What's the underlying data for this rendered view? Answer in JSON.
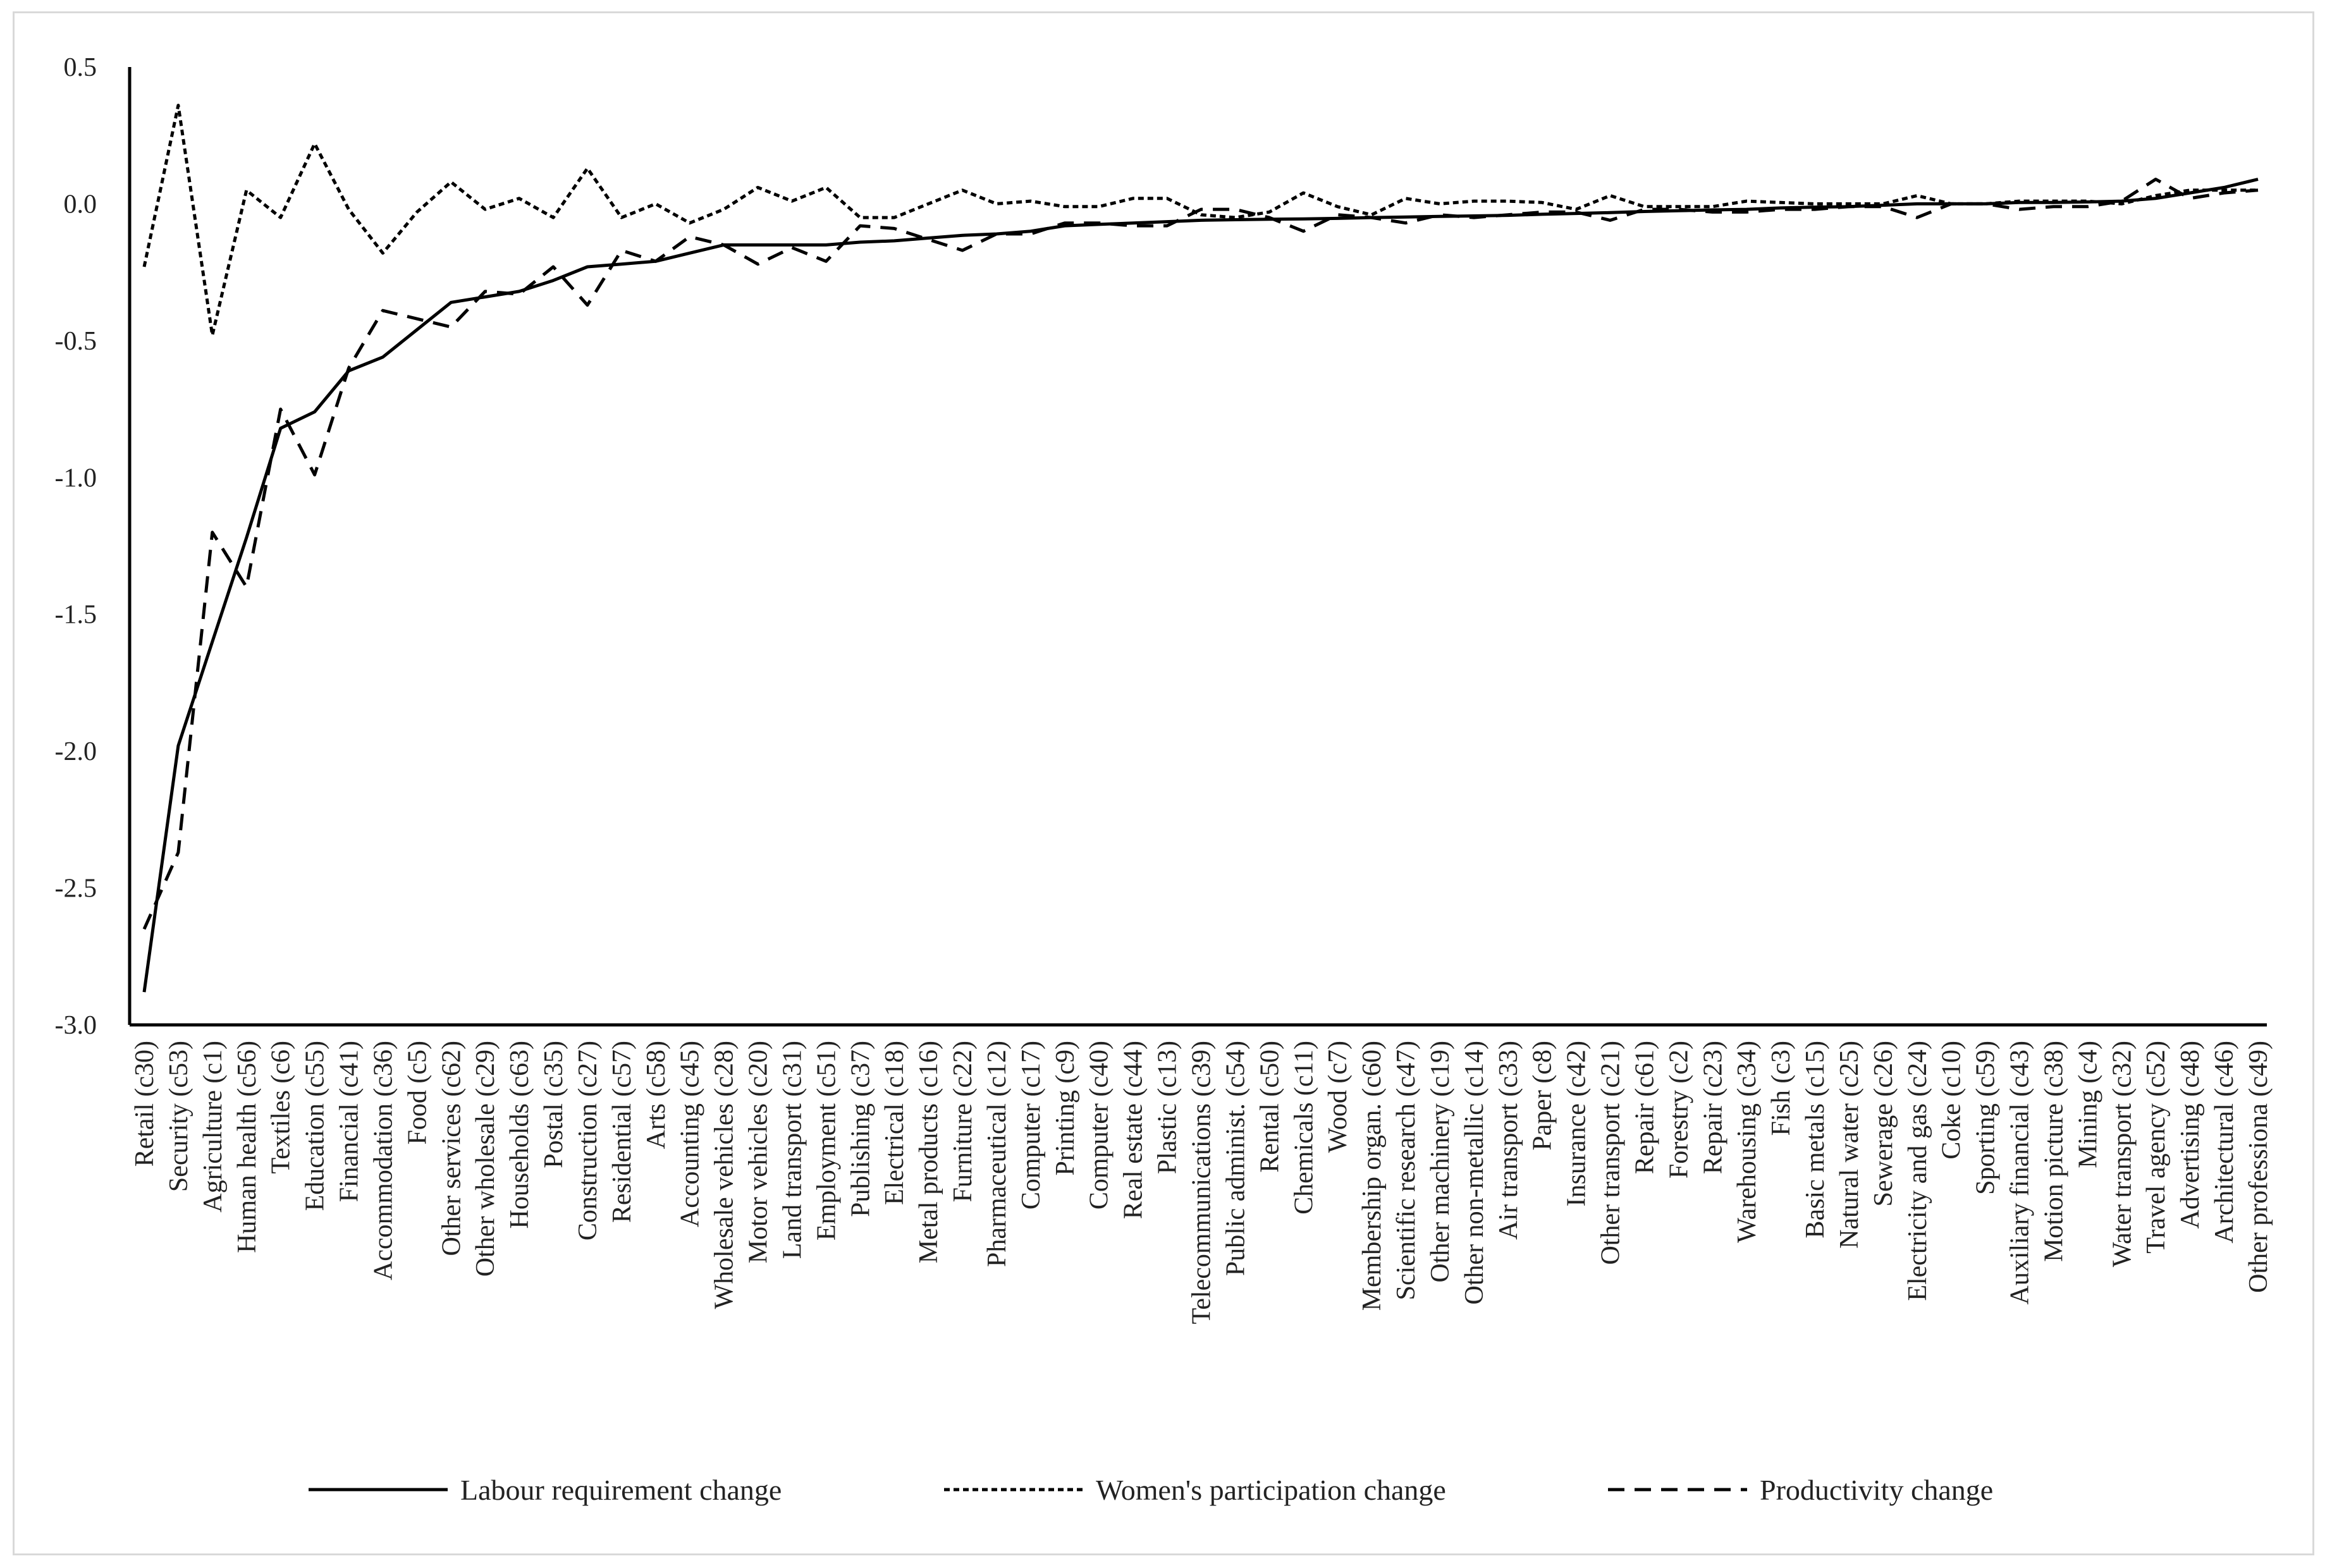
{
  "chart_data": {
    "type": "line",
    "title": "",
    "xlabel": "",
    "ylabel": "",
    "ylim": [
      -3.0,
      0.5
    ],
    "yticks": [
      "0.5",
      "0.0",
      "-0.5",
      "-1.0",
      "-1.5",
      "-2.0",
      "-2.5",
      "-3.0"
    ],
    "ytick_values": [
      0.5,
      0.0,
      -0.5,
      -1.0,
      -1.5,
      -2.0,
      -2.5,
      -3.0
    ],
    "grid": false,
    "legend_position": "bottom",
    "categories": [
      "Retail (c30)",
      "Security (c53)",
      "Agriculture (c1)",
      "Human health (c56)",
      "Textiles (c6)",
      "Education (c55)",
      "Financial  (c41)",
      "Accommodation (c36)",
      "Food (c5)",
      "Other services (c62)",
      "Other wholesale (c29)",
      "Households (c63)",
      "Postal (c35)",
      "Construction (c27)",
      "Residential (c57)",
      "Arts (c58)",
      "Accounting (c45)",
      "Wholesale vehicles (c28)",
      "Motor vehicles (c20)",
      "Land transport (c31)",
      "Employment (c51)",
      "Publishing (c37)",
      "Electrical (c18)",
      "Metal products (c16)",
      "Furniture (c22)",
      "Pharmaceutical (c12)",
      "Computer (c17)",
      "Printing (c9)",
      "Computer (c40)",
      "Real estate (c44)",
      "Plastic (c13)",
      "Telecommunications (c39)",
      "Public administ. (c54)",
      "Rental (c50)",
      "Chemicals (c11)",
      "Wood (c7)",
      "Membership organ. (c60)",
      "Scientific research (c47)",
      "Other machinery (c19)",
      "Other non-metallic (c14)",
      "Air transport (c33)",
      "Paper (c8)",
      "Insurance (c42)",
      "Other transport (c21)",
      "Repair (c61)",
      "Forestry (c2)",
      "Repair (c23)",
      "Warehousing (c34)",
      "Fish (c3)",
      "Basic metals (c15)",
      "Natural water (c25)",
      "Sewerage (c26)",
      "Electricity and gas (c24)",
      "Coke (c10)",
      "Sporting (c59)",
      "Auxiliary financial (c43)",
      "Motion picture (c38)",
      "Mining (c4)",
      "Water transport (c32)",
      "Travel agency (c52)",
      "Advertising (c48)",
      "Architectural (c46)",
      "Other professiona (c49)"
    ],
    "series": [
      {
        "name": "Labour requirement change",
        "style": "solid",
        "color": "#000000",
        "values": [
          -2.88,
          -1.98,
          -1.6,
          -1.22,
          -0.82,
          -0.76,
          -0.61,
          -0.56,
          -0.46,
          -0.36,
          -0.34,
          -0.32,
          -0.28,
          -0.23,
          -0.22,
          -0.21,
          -0.18,
          -0.15,
          -0.15,
          -0.15,
          -0.15,
          -0.14,
          -0.135,
          -0.125,
          -0.115,
          -0.11,
          -0.1,
          -0.08,
          -0.075,
          -0.07,
          -0.065,
          -0.06,
          -0.058,
          -0.056,
          -0.055,
          -0.053,
          -0.05,
          -0.048,
          -0.046,
          -0.044,
          -0.042,
          -0.038,
          -0.035,
          -0.032,
          -0.028,
          -0.025,
          -0.022,
          -0.02,
          -0.015,
          -0.012,
          -0.01,
          -0.005,
          0.0,
          0.0,
          0.0,
          0.005,
          0.005,
          0.007,
          0.01,
          0.02,
          0.04,
          0.06,
          0.09
        ]
      },
      {
        "name": "Women's participation change",
        "style": "dotted",
        "color": "#000000",
        "values": [
          -0.23,
          0.36,
          -0.48,
          0.05,
          -0.05,
          0.22,
          -0.02,
          -0.18,
          -0.03,
          0.08,
          -0.02,
          0.02,
          -0.05,
          0.13,
          -0.05,
          0.0,
          -0.07,
          -0.02,
          0.06,
          0.01,
          0.06,
          -0.05,
          -0.05,
          0.0,
          0.05,
          0.0,
          0.01,
          -0.01,
          -0.01,
          0.02,
          0.02,
          -0.04,
          -0.05,
          -0.03,
          0.04,
          -0.01,
          -0.04,
          0.02,
          0.0,
          0.01,
          0.01,
          0.005,
          -0.02,
          0.03,
          -0.01,
          -0.01,
          -0.01,
          0.01,
          0.005,
          0.0,
          0.0,
          0.0,
          0.03,
          0.0,
          0.0,
          0.01,
          0.01,
          0.01,
          0.0,
          0.03,
          0.05,
          0.05,
          0.05
        ]
      },
      {
        "name": "Productivity change",
        "style": "dashed",
        "color": "#000000",
        "values": [
          -2.65,
          -2.37,
          -1.2,
          -1.4,
          -0.75,
          -0.99,
          -0.6,
          -0.39,
          -0.42,
          -0.45,
          -0.32,
          -0.33,
          -0.23,
          -0.37,
          -0.17,
          -0.21,
          -0.12,
          -0.15,
          -0.22,
          -0.16,
          -0.21,
          -0.08,
          -0.09,
          -0.13,
          -0.17,
          -0.11,
          -0.11,
          -0.07,
          -0.07,
          -0.08,
          -0.08,
          -0.02,
          -0.02,
          -0.05,
          -0.1,
          -0.04,
          -0.05,
          -0.07,
          -0.04,
          -0.05,
          -0.04,
          -0.03,
          -0.03,
          -0.06,
          -0.02,
          -0.02,
          -0.03,
          -0.03,
          -0.02,
          -0.02,
          -0.01,
          -0.01,
          -0.05,
          0.0,
          0.0,
          -0.02,
          -0.01,
          -0.01,
          0.01,
          0.09,
          0.02,
          0.04,
          0.05
        ]
      }
    ]
  }
}
